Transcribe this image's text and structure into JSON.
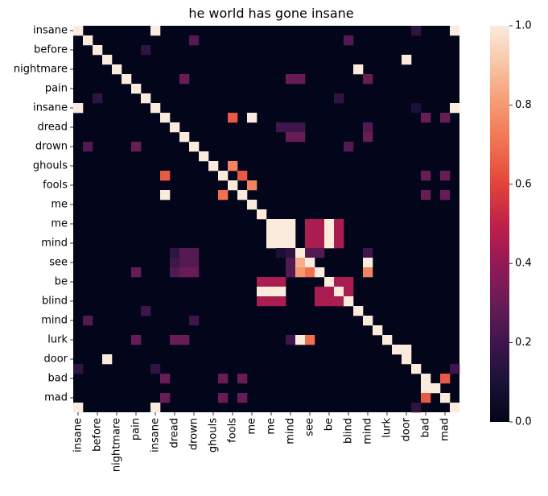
{
  "chart_data": {
    "type": "heatmap",
    "title": "he world has gone insane",
    "x_tick_labels": [
      "insane",
      "before",
      "nightmare",
      "pain",
      "insane",
      "dread",
      "drown",
      "ghouls",
      "fools",
      "me",
      "me",
      "mind",
      "see",
      "be",
      "blind",
      "mind",
      "lurk",
      "door",
      "bad",
      "mad"
    ],
    "y_tick_labels": [
      "insane",
      "before",
      "nightmare",
      "pain",
      "insane",
      "dread",
      "drown",
      "ghouls",
      "fools",
      "me",
      "me",
      "mind",
      "see",
      "be",
      "blind",
      "mind",
      "lurk",
      "door",
      "bad",
      "mad"
    ],
    "tokens": [
      "insane",
      "",
      "before",
      "",
      "nightmare",
      "",
      "pain",
      "",
      "insane",
      "",
      "dread",
      "",
      "drown",
      "",
      "ghouls",
      "",
      "fools",
      "",
      "me",
      "",
      "me",
      "",
      "mind",
      "",
      "see",
      "",
      "be",
      "",
      "blind",
      "",
      "mind",
      "",
      "lurk",
      "",
      "door",
      "",
      "bad",
      "",
      "mad",
      ""
    ],
    "colorbar": {
      "min": 0.0,
      "max": 1.0,
      "ticks": [
        "0.0",
        "0.2",
        "0.4",
        "0.6",
        "0.8",
        "1.0"
      ]
    },
    "colormap": "rocket",
    "default_value": 0.0,
    "cells": [
      [
        0,
        0,
        1.0
      ],
      [
        0,
        8,
        1.0
      ],
      [
        0,
        35,
        0.15
      ],
      [
        0,
        39,
        1.0
      ],
      [
        1,
        1,
        1.0
      ],
      [
        1,
        12,
        0.25
      ],
      [
        1,
        28,
        0.25
      ],
      [
        2,
        2,
        1.0
      ],
      [
        2,
        7,
        0.15
      ],
      [
        3,
        3,
        1.0
      ],
      [
        3,
        34,
        1.0
      ],
      [
        4,
        4,
        1.0
      ],
      [
        4,
        29,
        1.0
      ],
      [
        5,
        5,
        1.0
      ],
      [
        5,
        11,
        0.3
      ],
      [
        5,
        22,
        0.3
      ],
      [
        5,
        23,
        0.3
      ],
      [
        5,
        30,
        0.3
      ],
      [
        6,
        6,
        1.0
      ],
      [
        7,
        2,
        0.15
      ],
      [
        7,
        7,
        1.0
      ],
      [
        7,
        27,
        0.15
      ],
      [
        8,
        0,
        1.0
      ],
      [
        8,
        8,
        1.0
      ],
      [
        8,
        35,
        0.1
      ],
      [
        8,
        39,
        1.0
      ],
      [
        9,
        9,
        1.0
      ],
      [
        9,
        16,
        0.65
      ],
      [
        9,
        18,
        1.0
      ],
      [
        9,
        36,
        0.3
      ],
      [
        9,
        38,
        0.3
      ],
      [
        10,
        10,
        1.0
      ],
      [
        10,
        21,
        0.2
      ],
      [
        10,
        22,
        0.2
      ],
      [
        10,
        23,
        0.2
      ],
      [
        10,
        30,
        0.25
      ],
      [
        11,
        11,
        1.0
      ],
      [
        11,
        22,
        0.3
      ],
      [
        11,
        23,
        0.3
      ],
      [
        11,
        30,
        0.3
      ],
      [
        12,
        1,
        0.25
      ],
      [
        12,
        6,
        0.3
      ],
      [
        12,
        12,
        1.0
      ],
      [
        12,
        28,
        0.25
      ],
      [
        13,
        13,
        1.0
      ],
      [
        14,
        14,
        1.0
      ],
      [
        14,
        16,
        0.75
      ],
      [
        15,
        9,
        0.65
      ],
      [
        15,
        15,
        1.0
      ],
      [
        15,
        17,
        0.65
      ],
      [
        15,
        36,
        0.3
      ],
      [
        15,
        38,
        0.3
      ],
      [
        16,
        16,
        1.0
      ],
      [
        16,
        18,
        0.75
      ],
      [
        17,
        9,
        1.0
      ],
      [
        17,
        15,
        0.7
      ],
      [
        17,
        17,
        1.0
      ],
      [
        17,
        36,
        0.3
      ],
      [
        17,
        38,
        0.3
      ],
      [
        18,
        18,
        1.0
      ],
      [
        19,
        19,
        1.0
      ],
      [
        20,
        20,
        1.0
      ],
      [
        20,
        21,
        1.0
      ],
      [
        20,
        22,
        1.0
      ],
      [
        20,
        24,
        0.45
      ],
      [
        20,
        25,
        0.45
      ],
      [
        20,
        26,
        1.0
      ],
      [
        20,
        27,
        0.45
      ],
      [
        21,
        20,
        1.0
      ],
      [
        21,
        21,
        1.0
      ],
      [
        21,
        22,
        1.0
      ],
      [
        21,
        24,
        0.45
      ],
      [
        21,
        25,
        0.45
      ],
      [
        21,
        26,
        1.0
      ],
      [
        21,
        27,
        0.45
      ],
      [
        22,
        20,
        1.0
      ],
      [
        22,
        21,
        1.0
      ],
      [
        22,
        22,
        1.0
      ],
      [
        22,
        24,
        0.45
      ],
      [
        22,
        25,
        0.45
      ],
      [
        22,
        26,
        1.0
      ],
      [
        22,
        27,
        0.45
      ],
      [
        23,
        10,
        0.15
      ],
      [
        23,
        11,
        0.25
      ],
      [
        23,
        12,
        0.25
      ],
      [
        23,
        21,
        0.1
      ],
      [
        23,
        22,
        0.15
      ],
      [
        23,
        23,
        1.0
      ],
      [
        23,
        24,
        0.25
      ],
      [
        23,
        25,
        0.25
      ],
      [
        23,
        30,
        0.2
      ],
      [
        24,
        10,
        0.2
      ],
      [
        24,
        11,
        0.25
      ],
      [
        24,
        12,
        0.25
      ],
      [
        24,
        22,
        0.25
      ],
      [
        24,
        23,
        0.85
      ],
      [
        24,
        24,
        1.0
      ],
      [
        24,
        30,
        1.0
      ],
      [
        25,
        6,
        0.3
      ],
      [
        25,
        10,
        0.25
      ],
      [
        25,
        11,
        0.3
      ],
      [
        25,
        12,
        0.3
      ],
      [
        25,
        22,
        0.25
      ],
      [
        25,
        23,
        0.8
      ],
      [
        25,
        24,
        0.7
      ],
      [
        25,
        25,
        1.0
      ],
      [
        25,
        30,
        0.75
      ],
      [
        26,
        19,
        0.45
      ],
      [
        26,
        20,
        0.45
      ],
      [
        26,
        21,
        0.45
      ],
      [
        26,
        26,
        1.0
      ],
      [
        26,
        27,
        0.45
      ],
      [
        26,
        28,
        0.45
      ],
      [
        27,
        19,
        1.0
      ],
      [
        27,
        20,
        1.0
      ],
      [
        27,
        21,
        1.0
      ],
      [
        27,
        25,
        0.45
      ],
      [
        27,
        26,
        0.45
      ],
      [
        27,
        27,
        1.0
      ],
      [
        27,
        28,
        0.45
      ],
      [
        28,
        19,
        0.45
      ],
      [
        28,
        20,
        0.45
      ],
      [
        28,
        21,
        0.45
      ],
      [
        28,
        25,
        0.45
      ],
      [
        28,
        26,
        0.45
      ],
      [
        28,
        27,
        0.45
      ],
      [
        28,
        28,
        1.0
      ],
      [
        29,
        7,
        0.2
      ],
      [
        29,
        29,
        1.0
      ],
      [
        30,
        1,
        0.25
      ],
      [
        30,
        12,
        0.2
      ],
      [
        30,
        30,
        1.0
      ],
      [
        31,
        31,
        1.0
      ],
      [
        32,
        6,
        0.3
      ],
      [
        32,
        10,
        0.3
      ],
      [
        32,
        11,
        0.3
      ],
      [
        32,
        22,
        0.2
      ],
      [
        32,
        23,
        1.0
      ],
      [
        32,
        24,
        0.7
      ],
      [
        32,
        32,
        1.0
      ],
      [
        33,
        33,
        1.0
      ],
      [
        33,
        34,
        1.0
      ],
      [
        34,
        3,
        1.0
      ],
      [
        34,
        34,
        1.0
      ],
      [
        35,
        0,
        0.15
      ],
      [
        35,
        8,
        0.15
      ],
      [
        35,
        35,
        1.0
      ],
      [
        35,
        39,
        0.2
      ],
      [
        36,
        9,
        0.3
      ],
      [
        36,
        15,
        0.3
      ],
      [
        36,
        17,
        0.3
      ],
      [
        36,
        36,
        1.0
      ],
      [
        36,
        38,
        0.65
      ],
      [
        37,
        36,
        1.0
      ],
      [
        37,
        37,
        1.0
      ],
      [
        38,
        9,
        0.3
      ],
      [
        38,
        15,
        0.3
      ],
      [
        38,
        17,
        0.3
      ],
      [
        38,
        36,
        0.65
      ],
      [
        38,
        38,
        1.0
      ],
      [
        39,
        0,
        1.0
      ],
      [
        39,
        8,
        1.0
      ],
      [
        39,
        35,
        0.15
      ],
      [
        39,
        39,
        1.0
      ]
    ]
  }
}
